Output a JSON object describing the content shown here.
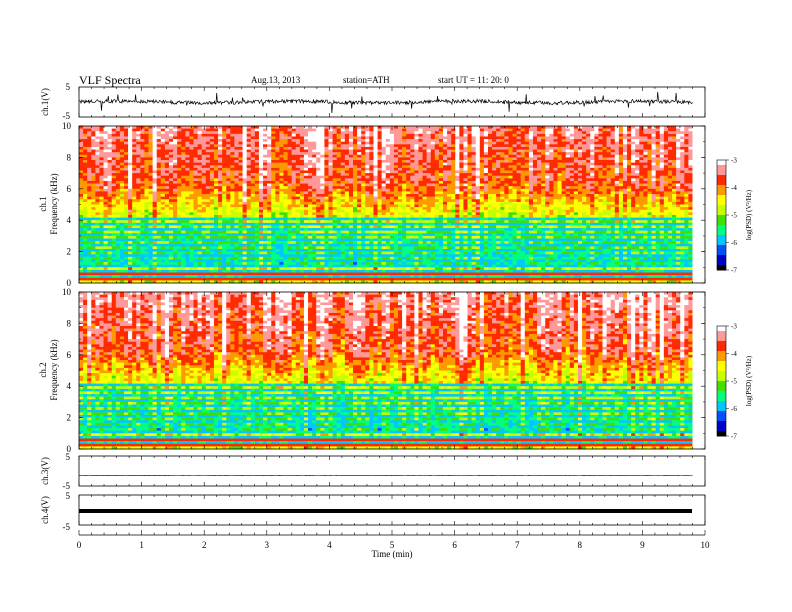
{
  "header": {
    "title": "VLF  Spectra",
    "date": "Aug.13, 2013",
    "station": "station=ATH",
    "start": "start  UT =   11: 20: 0"
  },
  "colors": {
    "colormap": [
      "#000000",
      "#0000c8",
      "#0050ff",
      "#00c8ff",
      "#00ff80",
      "#40e000",
      "#c8ff00",
      "#ffff00",
      "#ff9900",
      "#ff2a00",
      "#ff9999",
      "#ffffff"
    ]
  },
  "chart_data": [
    {
      "type": "line",
      "name": "ch1-waveform",
      "ylabel": "ch.1(V)",
      "ylim": [
        -5,
        5
      ],
      "ytick_labels": [
        "5",
        "-5"
      ],
      "xlim": [
        0,
        10
      ],
      "x_extent_min": [
        0,
        9.8
      ],
      "description_level": "noisy waveform around 0 V with spikes"
    },
    {
      "type": "heatmap",
      "name": "ch1-spectrogram",
      "ylabel_top": "ch.1",
      "ylabel": "Frequency  (kHz)",
      "ylim": [
        0,
        10
      ],
      "ytick_labels": [
        "0",
        "2",
        "4",
        "6",
        "8",
        "10"
      ],
      "xlim": [
        0,
        10
      ],
      "x_extent_min": [
        0,
        9.8
      ],
      "colorbar": {
        "label": "log(PSD) (V²/Hz)",
        "range": [
          -7,
          -3
        ],
        "tick_labels": [
          "-3",
          "-4",
          "-5",
          "-6",
          "-7"
        ]
      }
    },
    {
      "type": "heatmap",
      "name": "ch2-spectrogram",
      "ylabel_top": "ch.2",
      "ylabel": "Frequency  (kHz)",
      "ylim": [
        0,
        10
      ],
      "ytick_labels": [
        "0",
        "2",
        "4",
        "6",
        "8",
        "10"
      ],
      "xlim": [
        0,
        10
      ],
      "x_extent_min": [
        0,
        9.8
      ],
      "colorbar": {
        "label": "log(PSD) (V²/Hz)",
        "range": [
          -7,
          -3
        ],
        "tick_labels": [
          "-3",
          "-4",
          "-5",
          "-6",
          "-7"
        ]
      }
    },
    {
      "type": "line",
      "name": "ch3-waveform",
      "ylabel": "ch.3(V)",
      "ylim": [
        -5,
        5
      ],
      "ytick_labels": [
        "5",
        "-5"
      ],
      "xlim": [
        0,
        10
      ],
      "x_extent_min": [
        0,
        9.8
      ],
      "description_level": "flat near 0 V"
    },
    {
      "type": "line",
      "name": "ch4-waveform",
      "ylabel": "ch.4(V)",
      "ylim": [
        -5,
        5
      ],
      "ytick_labels": [
        "5",
        "-5"
      ],
      "xlim": [
        0,
        10
      ],
      "x_extent_min": [
        0,
        9.8
      ],
      "description_level": "thick flat band near 0 V"
    }
  ],
  "xaxis": {
    "label": "Time  (min)",
    "tick_labels": [
      "0",
      "1",
      "2",
      "3",
      "4",
      "5",
      "6",
      "7",
      "8",
      "9",
      "10"
    ]
  }
}
